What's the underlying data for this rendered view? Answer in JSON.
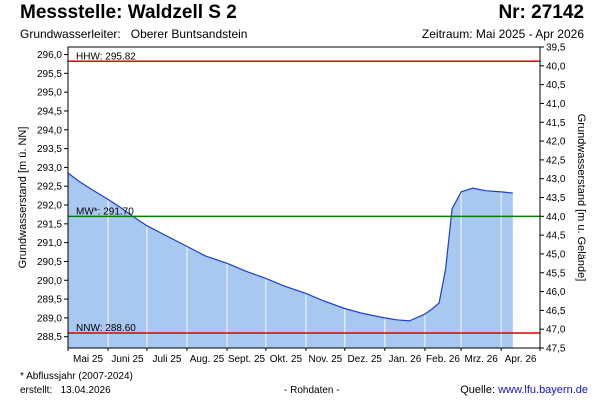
{
  "header": {
    "title": "Messstelle: Waldzell S 2",
    "number": "Nr: 27142",
    "aquifer_label": "Grundwasserleiter:",
    "aquifer_value": "Oberer Buntsandstein",
    "period": "Zeitraum: Mai 2025 - Apr 2026"
  },
  "footer": {
    "footnote": "* Abflussjahr (2007-2024)",
    "created_label": "erstellt:",
    "created_date": "13.04.2026",
    "rawdata": "- Rohdaten -",
    "source_label": "Quelle:",
    "source_link": "www.lfu.bayern.de"
  },
  "colors": {
    "fill": "#a9c8f0",
    "line": "#1a3fd0",
    "hhw": "#e00000",
    "nnw": "#e00000",
    "mw": "#008000",
    "grid": "#ffffff"
  },
  "chart_data": {
    "type": "area",
    "ylabel_left": "Grundwasserstand [m ü. NN]",
    "ylabel_right": "Grundwasserstand [m u. Gelände]",
    "ylim_left": [
      288.2,
      296.2
    ],
    "ylim_right": [
      39.5,
      47.5
    ],
    "yticks_left": [
      "288,5",
      "289,0",
      "289,5",
      "290,0",
      "290,5",
      "291,0",
      "291,5",
      "292,0",
      "292,5",
      "293,0",
      "293,5",
      "294,0",
      "294,5",
      "295,0",
      "295,5",
      "296,0"
    ],
    "yticks_right": [
      "39,5",
      "40,0",
      "40,5",
      "41,0",
      "41,5",
      "42,0",
      "42,5",
      "43,0",
      "43,5",
      "44,0",
      "44,5",
      "45,0",
      "45,5",
      "46,0",
      "46,5",
      "47,0",
      "47,5"
    ],
    "x_months": [
      "Mai 25",
      "Juni 25",
      "Juli 25",
      "Aug. 25",
      "Sept. 25",
      "Okt. 25",
      "Nov. 25",
      "Dez. 25",
      "Jan. 26",
      "Feb. 26",
      "Mrz. 26",
      "Apr. 26"
    ],
    "grid": true,
    "reference_lines": [
      {
        "key": "hhw",
        "label": "HHW: 295.82",
        "value": 295.82
      },
      {
        "key": "mw",
        "label": "MW*: 291.70",
        "value": 291.7
      },
      {
        "key": "nnw",
        "label": "NNW: 288.60",
        "value": 288.6
      }
    ],
    "series": [
      {
        "x": [
          "2025-05-01",
          "2025-05-10",
          "2025-05-20",
          "2025-06-01",
          "2025-06-10",
          "2025-06-20",
          "2025-07-01",
          "2025-07-15",
          "2025-08-01",
          "2025-08-15",
          "2025-09-01",
          "2025-09-15",
          "2025-10-01",
          "2025-10-15",
          "2025-11-01",
          "2025-11-15",
          "2025-12-01",
          "2025-12-15",
          "2026-01-01",
          "2026-01-10",
          "2026-01-20",
          "2026-02-01",
          "2026-02-07",
          "2026-02-12",
          "2026-02-17",
          "2026-02-22",
          "2026-03-01",
          "2026-03-10",
          "2026-03-20",
          "2026-04-01",
          "2026-04-10"
        ],
        "y": [
          292.85,
          292.62,
          292.4,
          292.15,
          291.95,
          291.7,
          291.45,
          291.2,
          290.9,
          290.65,
          290.45,
          290.25,
          290.05,
          289.85,
          289.65,
          289.45,
          289.25,
          289.12,
          289.0,
          288.95,
          288.92,
          289.1,
          289.25,
          289.4,
          290.3,
          291.9,
          292.35,
          292.45,
          292.38,
          292.35,
          292.32
        ]
      }
    ]
  }
}
